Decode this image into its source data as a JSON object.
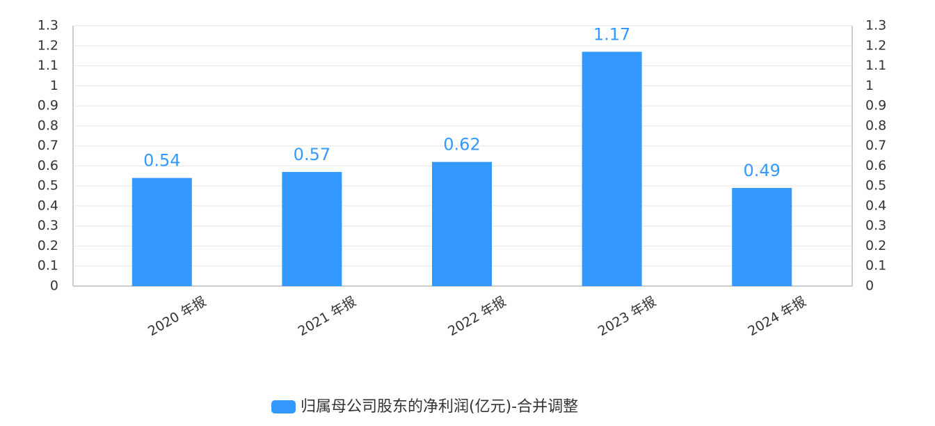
{
  "chart_data": {
    "type": "bar",
    "categories": [
      "2020 年报",
      "2021 年报",
      "2022 年报",
      "2023 年报",
      "2024 年报"
    ],
    "series": [
      {
        "name": "归属母公司股东的净利润(亿元)-合并调整",
        "color": "#3399ff",
        "values": [
          0.54,
          0.57,
          0.62,
          1.17,
          0.49
        ]
      }
    ],
    "ylim": [
      0,
      1.3
    ],
    "yticks": [
      0,
      0.1,
      0.2,
      0.3,
      0.4,
      0.5,
      0.6,
      0.7,
      0.8,
      0.9,
      1,
      1.1,
      1.2,
      1.3
    ],
    "y2lim": [
      0,
      1.3
    ],
    "y2ticks": [
      0,
      0.1,
      0.2,
      0.3,
      0.4,
      0.5,
      0.6,
      0.7,
      0.8,
      0.9,
      1,
      1.1,
      1.2,
      1.3
    ],
    "grid": true
  }
}
